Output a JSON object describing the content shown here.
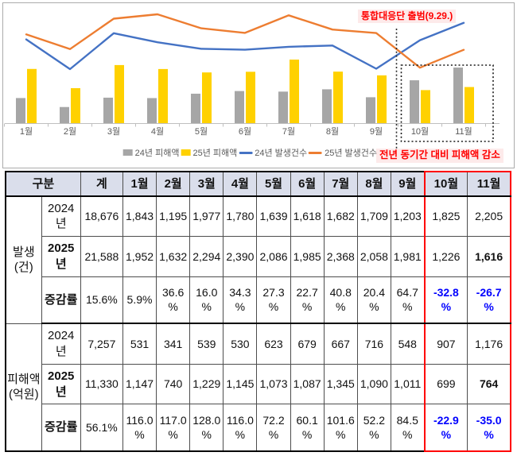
{
  "colors": {
    "bar_2024": "#a6a6a6",
    "bar_2025": "#ffd100",
    "line_2024": "#4472c4",
    "line_2025": "#ed7d31",
    "highlight_red": "#ff0000",
    "negative_blue": "#0000ff",
    "annotation_bg": "#fdeaea",
    "header_bg": "#dadeeb",
    "axis_text": "#595959"
  },
  "chart_data": {
    "type": "combo",
    "categories": [
      "1월",
      "2월",
      "3월",
      "4월",
      "5월",
      "6월",
      "7월",
      "8월",
      "9월",
      "10월",
      "11월"
    ],
    "series": [
      {
        "name": "24년 피해액",
        "type": "bar",
        "color_key": "bar_2024",
        "values": [
          531,
          341,
          539,
          530,
          623,
          679,
          667,
          716,
          548,
          907,
          1176
        ]
      },
      {
        "name": "25년 피해액",
        "type": "bar",
        "color_key": "bar_2025",
        "values": [
          1147,
          740,
          1229,
          1145,
          1073,
          1087,
          1345,
          1090,
          1011,
          699,
          764
        ]
      },
      {
        "name": "24년 발생건수",
        "type": "line",
        "color_key": "line_2024",
        "values": [
          1843,
          1195,
          1977,
          1780,
          1639,
          1618,
          1682,
          1709,
          1203,
          1825,
          2205
        ]
      },
      {
        "name": "25년 발생건수",
        "type": "line",
        "color_key": "line_2025",
        "values": [
          1952,
          1632,
          2294,
          2390,
          2086,
          1985,
          2368,
          2058,
          1981,
          1226,
          1616
        ]
      }
    ],
    "legend_position": "bottom",
    "grid": false,
    "annotations": {
      "launch_label": "통합대응단 출범(9.29.)",
      "decrease_label": "전년 동기간 대비 피해액 감소",
      "dotted_line_between": [
        "9월",
        "10월"
      ],
      "highlight_box_months": [
        "10월",
        "11월"
      ]
    }
  },
  "table": {
    "corner_header": "구분",
    "total_header": "계",
    "month_headers": [
      "1월",
      "2월",
      "3월",
      "4월",
      "5월",
      "6월",
      "7월",
      "8월",
      "9월",
      "10월",
      "11월"
    ],
    "highlight_months": [
      "10월",
      "11월"
    ],
    "groups": [
      {
        "label": "발생\n(건)",
        "rows": [
          {
            "label": "2024\n년",
            "bold_label": false,
            "values": [
              "18,676",
              "1,843",
              "1,195",
              "1,977",
              "1,780",
              "1,639",
              "1,618",
              "1,682",
              "1,709",
              "1,203",
              "1,825",
              "2,205"
            ]
          },
          {
            "label": "2025\n년",
            "bold_label": true,
            "bold_values": [
              11
            ],
            "values": [
              "21,588",
              "1,952",
              "1,632",
              "2,294",
              "2,390",
              "2,086",
              "1,985",
              "2,368",
              "2,058",
              "1,981",
              "1,226",
              "1,616"
            ]
          },
          {
            "label": "증감률",
            "bold_label": true,
            "blue_values": [
              10,
              11
            ],
            "values": [
              "15.6%",
              "5.9%",
              "36.6\n%",
              "16.0\n%",
              "34.3\n%",
              "27.3\n%",
              "22.7\n%",
              "40.8\n%",
              "20.4\n%",
              "64.7\n%",
              "-32.8\n%",
              "-26.7\n%"
            ]
          }
        ]
      },
      {
        "label": "피해액\n(억원)",
        "rows": [
          {
            "label": "2024\n년",
            "bold_label": false,
            "values": [
              "7,257",
              "531",
              "341",
              "539",
              "530",
              "623",
              "679",
              "667",
              "716",
              "548",
              "907",
              "1,176"
            ]
          },
          {
            "label": "2025\n년",
            "bold_label": true,
            "bold_values": [
              11
            ],
            "values": [
              "11,330",
              "1,147",
              "740",
              "1,229",
              "1,145",
              "1,073",
              "1,087",
              "1,345",
              "1,090",
              "1,011",
              "699",
              "764"
            ]
          },
          {
            "label": "증감률",
            "bold_label": true,
            "blue_values": [
              10,
              11
            ],
            "values": [
              "56.1%",
              "116.0\n%",
              "117.0\n%",
              "128.0\n%",
              "116.0\n%",
              "72.2\n%",
              "60.1\n%",
              "101.6\n%",
              "52.2\n%",
              "84.5\n%",
              "-22.9\n%",
              "-35.0\n%"
            ]
          }
        ]
      }
    ]
  }
}
